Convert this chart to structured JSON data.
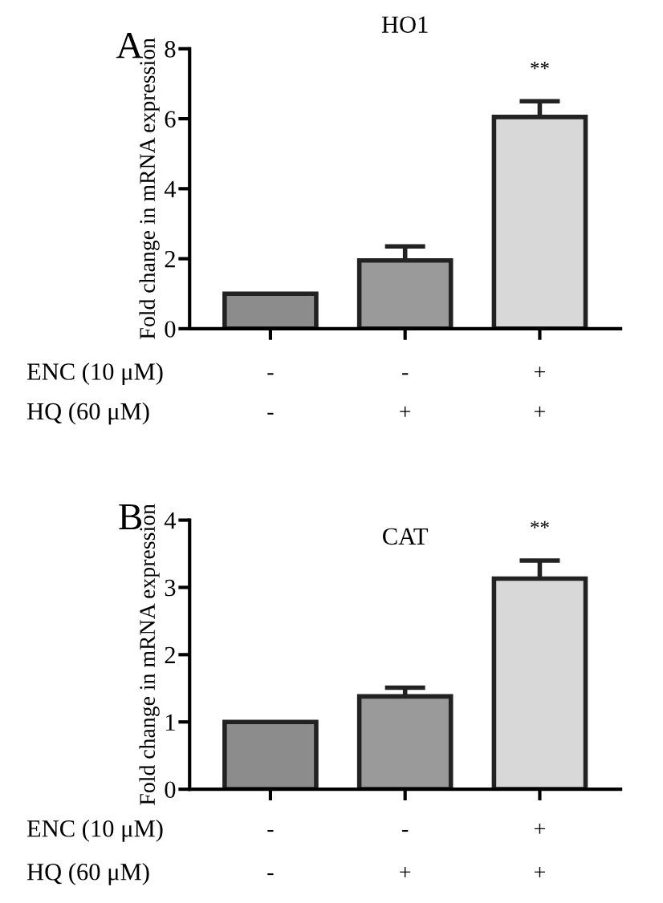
{
  "chart_data": [
    {
      "type": "bar",
      "title": "HO1",
      "ylabel": "Fold change in mRNA expression",
      "categories": [
        null,
        null,
        null
      ],
      "values": [
        1.0,
        1.95,
        6.05
      ],
      "errors": [
        null,
        0.4,
        0.45
      ],
      "colors": [
        "#8c8c8c",
        "#9a9a9a",
        "#d8d8d8"
      ],
      "ylim": [
        0,
        8
      ],
      "yticks": [
        0,
        2,
        4,
        6,
        8
      ],
      "grid": false,
      "legend": false,
      "annotations": [
        "A",
        "**",
        "ENC (10 μM)",
        "-",
        "-",
        "+",
        "HQ (60 μM)",
        "-",
        "+",
        "+"
      ]
    },
    {
      "type": "bar",
      "title": "CAT",
      "ylabel": "Fold change in mRNA expression",
      "categories": [
        null,
        null,
        null
      ],
      "values": [
        1.0,
        1.38,
        3.13
      ],
      "errors": [
        null,
        0.13,
        0.27
      ],
      "colors": [
        "#8c8c8c",
        "#9a9a9a",
        "#d8d8d8"
      ],
      "ylim": [
        0,
        4
      ],
      "yticks": [
        0,
        1,
        2,
        3,
        4
      ],
      "grid": false,
      "legend": false,
      "annotations": [
        "B",
        "**",
        "ENC (10 μM)",
        "-",
        "-",
        "+",
        "HQ (60 μM)",
        "-",
        "+",
        "+"
      ]
    }
  ]
}
